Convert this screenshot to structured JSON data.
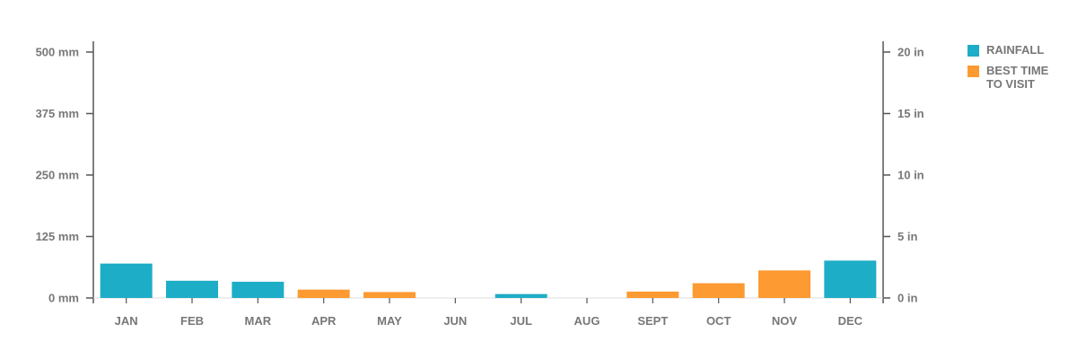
{
  "chart_data": {
    "type": "bar",
    "categories": [
      "JAN",
      "FEB",
      "MAR",
      "APR",
      "MAY",
      "JUN",
      "JUL",
      "AUG",
      "SEPT",
      "OCT",
      "NOV",
      "DEC"
    ],
    "values": [
      70,
      35,
      33,
      17,
      12,
      0,
      8,
      0,
      13,
      30,
      56,
      76
    ],
    "value_unit": "mm",
    "highlight": [
      false,
      false,
      false,
      true,
      true,
      false,
      false,
      false,
      true,
      true,
      true,
      false
    ],
    "ylim": [
      0,
      500
    ],
    "left_axis_ticks": [
      {
        "value": 0,
        "label": "0 mm"
      },
      {
        "value": 125,
        "label": "125 mm"
      },
      {
        "value": 250,
        "label": "250 mm"
      },
      {
        "value": 375,
        "label": "375 mm"
      },
      {
        "value": 500,
        "label": "500 mm"
      }
    ],
    "right_axis_ticks": [
      {
        "value": 0,
        "label": "0 in"
      },
      {
        "value": 5,
        "label": "5 in"
      },
      {
        "value": 10,
        "label": "10 in"
      },
      {
        "value": 15,
        "label": "15 in"
      },
      {
        "value": 20,
        "label": "20 in"
      }
    ],
    "right_ylim": [
      0,
      20
    ],
    "legend": [
      {
        "key": "rainfall",
        "label": "RAINFALL",
        "color": "#1eadc6"
      },
      {
        "key": "best",
        "label": "BEST TIME\nTO VISIT",
        "color": "#fd9a31"
      }
    ],
    "legend_position": "right",
    "grid": false,
    "colors": {
      "rainfall": "#1eadc6",
      "best_time": "#fd9a31",
      "axis": "#555555",
      "text": "#777777"
    }
  }
}
